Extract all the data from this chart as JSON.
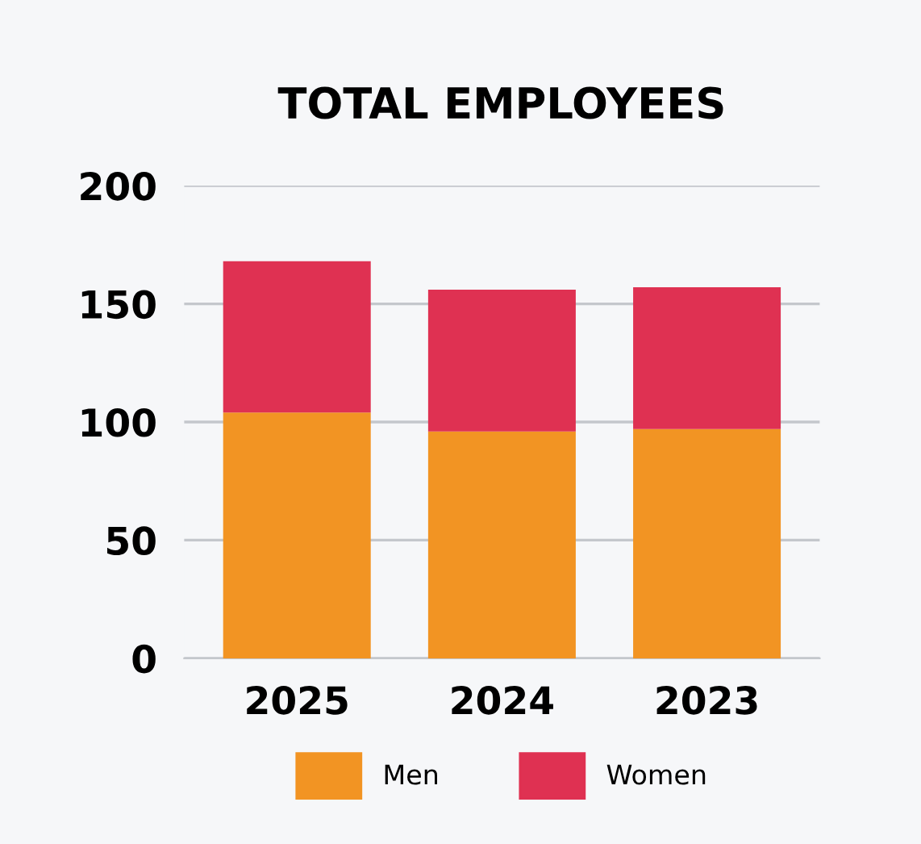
{
  "chart_data": {
    "type": "bar",
    "title": "TOTAL EMPLOYEES",
    "stacked": true,
    "categories": [
      "2025",
      "2024",
      "2023"
    ],
    "series": [
      {
        "name": "Men",
        "color": "#f29423",
        "values": [
          104,
          96,
          97
        ]
      },
      {
        "name": "Women",
        "color": "#df3152",
        "values": [
          64,
          60,
          60
        ]
      }
    ],
    "ylim": [
      0,
      200
    ],
    "yticks": [
      0,
      50,
      100,
      150,
      200
    ],
    "grid": "y",
    "legend": "bottom"
  }
}
